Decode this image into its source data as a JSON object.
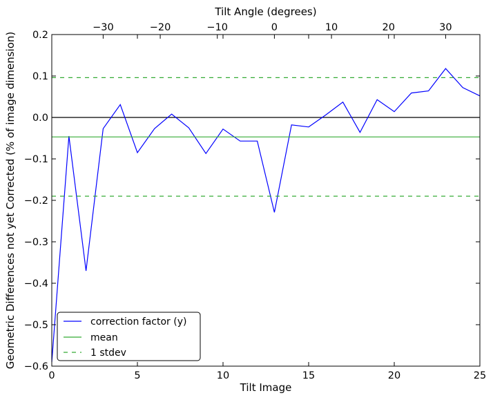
{
  "chart_data": {
    "type": "line",
    "title": "",
    "xlabel": "Tilt Image",
    "ylabel": "Geometric Differences not yet Corrected (% of image dimension)",
    "x2label": "Tilt Angle (degrees)",
    "xlim": [
      0,
      25
    ],
    "ylim": [
      -0.6,
      0.2
    ],
    "x2lim": [
      -39,
      36
    ],
    "xticks": [
      0,
      5,
      10,
      15,
      20,
      25
    ],
    "xtick_labels": [
      "0",
      "5",
      "10",
      "15",
      "20",
      "25"
    ],
    "yticks": [
      -0.6,
      -0.5,
      -0.4,
      -0.3,
      -0.2,
      -0.1,
      0.0,
      0.1,
      0.2
    ],
    "ytick_labels": [
      "−0.6",
      "−0.5",
      "−0.4",
      "−0.3",
      "−0.2",
      "−0.1",
      "0.0",
      "0.1",
      "0.2"
    ],
    "x2ticks": [
      -30,
      -20,
      -10,
      0,
      10,
      20,
      30
    ],
    "x2tick_labels": [
      "−30",
      "−20",
      "−10",
      "0",
      "10",
      "20",
      "30"
    ],
    "grid": false,
    "legend_position": "lower-left",
    "series": [
      {
        "name": "correction factor (y)",
        "color": "#0000ff",
        "style": "solid",
        "x": [
          0,
          1,
          2,
          3,
          4,
          5,
          6,
          7,
          8,
          9,
          10,
          11,
          12,
          13,
          14,
          15,
          16,
          17,
          18,
          19,
          20,
          21,
          22,
          23,
          24,
          25
        ],
        "y": [
          -0.59,
          -0.045,
          -0.37,
          -0.027,
          0.031,
          -0.085,
          -0.027,
          0.008,
          -0.025,
          -0.087,
          -0.028,
          -0.057,
          -0.057,
          -0.229,
          -0.018,
          -0.023,
          0.006,
          0.037,
          -0.036,
          0.043,
          0.014,
          0.059,
          0.064,
          0.118,
          0.072,
          0.052
        ]
      },
      {
        "name": "mean",
        "color": "#33aa33",
        "style": "solid",
        "x": [
          0,
          25
        ],
        "y": [
          -0.047,
          -0.047
        ]
      },
      {
        "name": "1 stdev",
        "color": "#33aa33",
        "style": "dashed",
        "x": [
          0,
          25
        ],
        "y": [
          0.096,
          0.096
        ]
      },
      {
        "name": "",
        "color": "#33aa33",
        "style": "dashed",
        "x": [
          0,
          25
        ],
        "y": [
          -0.19,
          -0.19
        ]
      }
    ],
    "reference_line": {
      "y": 0.0,
      "color": "#000000"
    },
    "legend": [
      "correction factor (y)",
      "mean",
      "1 stdev"
    ]
  }
}
